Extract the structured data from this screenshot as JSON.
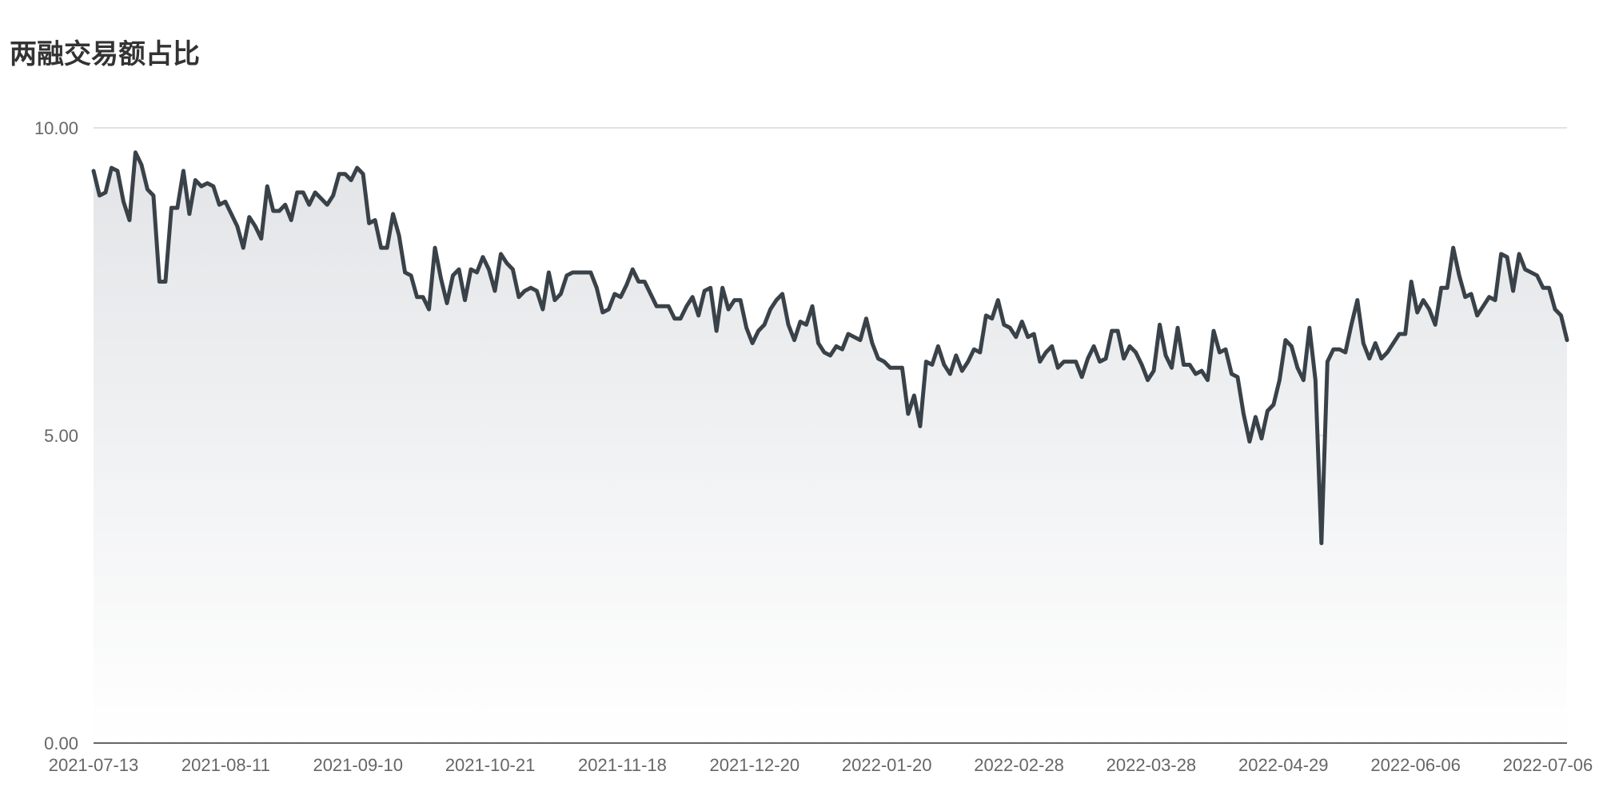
{
  "chart_data": {
    "type": "area",
    "title": "两融交易额占比",
    "xlabel": "",
    "ylabel": "",
    "ylim": [
      0,
      10
    ],
    "y_ticks": [
      "0.00",
      "5.00",
      "10.00"
    ],
    "x_tick_labels": [
      "2021-07-13",
      "2021-08-11",
      "2021-09-10",
      "2021-10-21",
      "2021-11-18",
      "2021-12-20",
      "2022-01-20",
      "2022-02-28",
      "2022-03-28",
      "2022-04-29",
      "2022-06-06",
      "2022-07-06"
    ],
    "grid": true,
    "colors": {
      "line": "#3a4249",
      "fill_top": "#e2e4e7",
      "fill_bottom": "#ffffff"
    },
    "series": [
      {
        "values": [
          9.3,
          8.9,
          8.95,
          9.35,
          9.3,
          8.8,
          8.5,
          9.6,
          9.4,
          9.0,
          8.9,
          7.5,
          7.5,
          8.7,
          8.7,
          9.3,
          8.6,
          9.15,
          9.05,
          9.1,
          9.05,
          8.75,
          8.8,
          8.6,
          8.4,
          8.05,
          8.55,
          8.4,
          8.2,
          9.05,
          8.65,
          8.65,
          8.75,
          8.5,
          8.95,
          8.95,
          8.75,
          8.95,
          8.85,
          8.75,
          8.9,
          9.25,
          9.25,
          9.15,
          9.35,
          9.25,
          8.45,
          8.5,
          8.05,
          8.05,
          8.6,
          8.25,
          7.65,
          7.6,
          7.25,
          7.25,
          7.05,
          8.05,
          7.55,
          7.15,
          7.6,
          7.7,
          7.2,
          7.7,
          7.65,
          7.9,
          7.7,
          7.35,
          7.95,
          7.8,
          7.7,
          7.25,
          7.35,
          7.4,
          7.35,
          7.05,
          7.65,
          7.2,
          7.3,
          7.6,
          7.65,
          7.65,
          7.65,
          7.65,
          7.4,
          7.0,
          7.05,
          7.3,
          7.25,
          7.45,
          7.7,
          7.5,
          7.5,
          7.3,
          7.1,
          7.1,
          7.1,
          6.9,
          6.9,
          7.1,
          7.25,
          6.95,
          7.35,
          7.4,
          6.7,
          7.4,
          7.05,
          7.2,
          7.2,
          6.75,
          6.5,
          6.7,
          6.8,
          7.05,
          7.2,
          7.3,
          6.8,
          6.55,
          6.85,
          6.8,
          7.1,
          6.5,
          6.35,
          6.3,
          6.45,
          6.4,
          6.65,
          6.6,
          6.55,
          6.9,
          6.5,
          6.25,
          6.2,
          6.1,
          6.1,
          6.1,
          5.35,
          5.65,
          5.15,
          6.2,
          6.15,
          6.45,
          6.15,
          6.0,
          6.3,
          6.05,
          6.2,
          6.4,
          6.35,
          6.95,
          6.9,
          7.2,
          6.8,
          6.75,
          6.6,
          6.85,
          6.6,
          6.65,
          6.2,
          6.35,
          6.45,
          6.1,
          6.2,
          6.2,
          6.2,
          5.95,
          6.25,
          6.45,
          6.2,
          6.25,
          6.7,
          6.7,
          6.25,
          6.45,
          6.35,
          6.15,
          5.9,
          6.05,
          6.8,
          6.3,
          6.1,
          6.75,
          6.15,
          6.15,
          6.0,
          6.05,
          5.9,
          6.7,
          6.35,
          6.4,
          6.0,
          5.95,
          5.35,
          4.9,
          5.3,
          4.95,
          5.4,
          5.5,
          5.9,
          6.55,
          6.45,
          6.1,
          5.9,
          6.75,
          5.9,
          3.25,
          6.2,
          6.4,
          6.4,
          6.35,
          6.8,
          7.2,
          6.5,
          6.25,
          6.5,
          6.25,
          6.35,
          6.5,
          6.65,
          6.65,
          7.5,
          7.0,
          7.2,
          7.05,
          6.8,
          7.4,
          7.4,
          8.05,
          7.6,
          7.25,
          7.3,
          6.95,
          7.1,
          7.25,
          7.2,
          7.95,
          7.9,
          7.35,
          7.95,
          7.7,
          7.65,
          7.6,
          7.4,
          7.4,
          7.05,
          6.95,
          6.55
        ]
      }
    ]
  }
}
